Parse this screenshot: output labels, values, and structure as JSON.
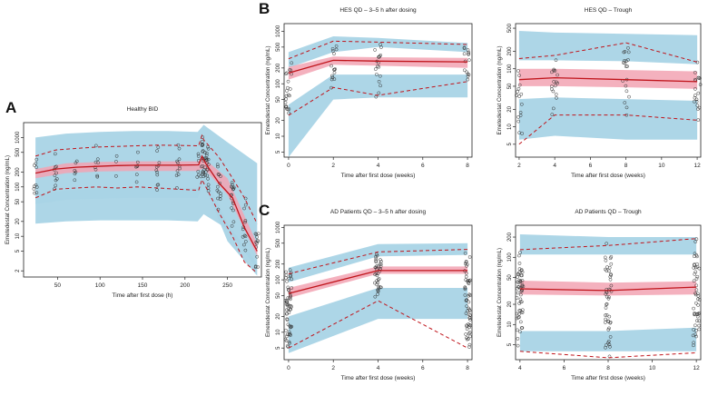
{
  "chart_data": [
    {
      "panel": "A",
      "type": "line",
      "title": "Healthy BID",
      "xlabel": "Time after first dose (h)",
      "ylabel": "Emetedestat Concentration (ng/mL)",
      "xlim": [
        10,
        290
      ],
      "ylim": [
        1.5,
        2000
      ],
      "yscale": "log",
      "xticks": [
        50,
        100,
        150,
        200,
        250
      ],
      "yticks": [
        2,
        5,
        10,
        20,
        50,
        100,
        200,
        500,
        1000
      ],
      "bands": [
        {
          "name": "p95 PI",
          "x": [
            24,
            60,
            100,
            140,
            180,
            215,
            222,
            250,
            285
          ],
          "lo": [
            18,
            20,
            21,
            21,
            21,
            20,
            28,
            14,
            2.2
          ],
          "hi": [
            1000,
            1200,
            1300,
            1350,
            1350,
            1300,
            1800,
            800,
            300
          ]
        },
        {
          "name": "median PI",
          "x": [
            24,
            60,
            100,
            140,
            180,
            215,
            222,
            250,
            285
          ],
          "lo": [
            150,
            190,
            205,
            210,
            210,
            210,
            240,
            70,
            4
          ],
          "hi": [
            230,
            300,
            320,
            330,
            330,
            330,
            380,
            150,
            7
          ]
        },
        {
          "name": "p5 PI",
          "x": [
            24,
            60,
            100,
            140,
            180,
            215,
            222,
            250,
            285
          ],
          "lo": [
            45,
            55,
            58,
            60,
            60,
            60,
            120,
            8,
            1.6
          ],
          "hi": [
            70,
            85,
            90,
            95,
            95,
            95,
            200,
            18,
            2.8
          ]
        }
      ],
      "series": [
        {
          "name": "observed median",
          "style": "solid",
          "x": [
            24,
            48,
            72,
            96,
            120,
            144,
            168,
            192,
            216,
            220,
            222,
            226,
            240,
            256,
            270,
            285
          ],
          "y": [
            190,
            230,
            250,
            260,
            270,
            275,
            275,
            275,
            280,
            420,
            350,
            270,
            120,
            60,
            15,
            5
          ]
        },
        {
          "name": "observed p95",
          "style": "dashed",
          "x": [
            24,
            48,
            72,
            96,
            120,
            144,
            168,
            192,
            216,
            220,
            222,
            226,
            240,
            256,
            270,
            285
          ],
          "y": [
            420,
            560,
            600,
            640,
            660,
            680,
            700,
            690,
            680,
            1100,
            900,
            750,
            400,
            150,
            60,
            18
          ]
        },
        {
          "name": "observed p5",
          "style": "dashed",
          "x": [
            24,
            48,
            72,
            96,
            120,
            144,
            168,
            192,
            216,
            220,
            222,
            226,
            240,
            256,
            270,
            285
          ],
          "y": [
            60,
            90,
            95,
            100,
            95,
            100,
            95,
            90,
            85,
            140,
            120,
            90,
            30,
            10,
            3,
            1.8
          ]
        }
      ]
    },
    {
      "panel": "B",
      "type": "line",
      "title": "HES QD – 3–5 h after dosing",
      "xlabel": "Time after first dose (weeks)",
      "ylabel": "Emetedestat Concentration (ng/mL)",
      "xlim": [
        -0.2,
        8.2
      ],
      "ylim": [
        4,
        1400
      ],
      "yscale": "log",
      "xticks": [
        0,
        2,
        4,
        6,
        8
      ],
      "yticks": [
        5,
        10,
        20,
        50,
        100,
        200,
        500,
        1000
      ],
      "bands": [
        {
          "name": "p95 PI",
          "x": [
            0,
            2,
            4,
            8
          ],
          "lo": [
            200,
            400,
            500,
            400
          ],
          "hi": [
            400,
            800,
            750,
            600
          ]
        },
        {
          "name": "median PI",
          "x": [
            0,
            2,
            4,
            8
          ],
          "lo": [
            120,
            230,
            220,
            200
          ],
          "hi": [
            210,
            330,
            320,
            310
          ]
        },
        {
          "name": "p5 PI",
          "x": [
            0,
            2,
            4,
            8
          ],
          "lo": [
            4,
            50,
            55,
            55
          ],
          "hi": [
            40,
            150,
            150,
            150
          ]
        }
      ],
      "series": [
        {
          "name": "observed median",
          "style": "solid",
          "x": [
            0,
            2,
            4,
            8
          ],
          "y": [
            160,
            280,
            270,
            260
          ]
        },
        {
          "name": "observed p95",
          "style": "dashed",
          "x": [
            0,
            2,
            4,
            8
          ],
          "y": [
            300,
            650,
            620,
            560
          ]
        },
        {
          "name": "observed p5",
          "style": "dashed",
          "x": [
            0,
            2,
            4,
            8
          ],
          "y": [
            25,
            85,
            60,
            110
          ]
        }
      ]
    },
    {
      "panel": "B",
      "type": "line",
      "title": "HES QD – Trough",
      "xlabel": "Time after first dose (weeks)",
      "ylabel": "Emetedestat Concentration (ng/mL)",
      "xlim": [
        1.8,
        12.2
      ],
      "ylim": [
        3,
        600
      ],
      "yscale": "log",
      "xticks": [
        2,
        4,
        6,
        8,
        10,
        12
      ],
      "yticks": [
        5,
        10,
        20,
        50,
        100,
        200,
        500
      ],
      "bands": [
        {
          "name": "p95 PI",
          "x": [
            2,
            4,
            8,
            12
          ],
          "lo": [
            140,
            140,
            135,
            120
          ],
          "hi": [
            450,
            420,
            400,
            380
          ]
        },
        {
          "name": "median PI",
          "x": [
            2,
            4,
            8,
            12
          ],
          "lo": [
            50,
            50,
            48,
            45
          ],
          "hi": [
            100,
            100,
            95,
            90
          ]
        },
        {
          "name": "p5 PI",
          "x": [
            2,
            4,
            8,
            12
          ],
          "lo": [
            6,
            7,
            6,
            6
          ],
          "hi": [
            30,
            32,
            30,
            28
          ]
        }
      ],
      "series": [
        {
          "name": "observed median",
          "style": "solid",
          "x": [
            2,
            4,
            8,
            12
          ],
          "y": [
            65,
            70,
            65,
            60
          ]
        },
        {
          "name": "observed p95",
          "style": "dashed",
          "x": [
            2,
            4,
            8,
            12
          ],
          "y": [
            150,
            170,
            280,
            130
          ]
        },
        {
          "name": "observed p5",
          "style": "dashed",
          "x": [
            2,
            4,
            8,
            12
          ],
          "y": [
            5,
            16,
            16,
            13
          ]
        }
      ]
    },
    {
      "panel": "C",
      "type": "line",
      "title": "AD Patients QD – 3–5 h after dosing",
      "xlabel": "Time after first dose (weeks)",
      "ylabel": "Emetedestat Concentration (ng/mL)",
      "xlim": [
        -0.2,
        8.2
      ],
      "ylim": [
        3,
        1100
      ],
      "yscale": "log",
      "xticks": [
        0,
        2,
        4,
        6,
        8
      ],
      "yticks": [
        5,
        10,
        20,
        50,
        100,
        200,
        500,
        1000
      ],
      "bands": [
        {
          "name": "p95 PI",
          "x": [
            0,
            4,
            8
          ],
          "lo": [
            90,
            280,
            300
          ],
          "hi": [
            170,
            480,
            500
          ]
        },
        {
          "name": "median PI",
          "x": [
            0,
            4,
            8
          ],
          "lo": [
            45,
            130,
            130
          ],
          "hi": [
            70,
            180,
            180
          ]
        },
        {
          "name": "p5 PI",
          "x": [
            0,
            4,
            8
          ],
          "lo": [
            4,
            18,
            18
          ],
          "hi": [
            20,
            70,
            70
          ]
        }
      ],
      "series": [
        {
          "name": "observed median",
          "style": "solid",
          "x": [
            0,
            4,
            8
          ],
          "y": [
            55,
            150,
            150
          ]
        },
        {
          "name": "observed p95",
          "style": "dashed",
          "x": [
            0,
            4,
            8
          ],
          "y": [
            130,
            340,
            380
          ]
        },
        {
          "name": "observed p5",
          "style": "dashed",
          "x": [
            0,
            4,
            8
          ],
          "y": [
            5,
            40,
            5
          ]
        }
      ]
    },
    {
      "panel": "C",
      "type": "line",
      "title": "AD Patients QD – Trough",
      "xlabel": "Time after first dose (weeks)",
      "ylabel": "Emetedestat Concentration (ng/mL)",
      "xlim": [
        3.8,
        12.2
      ],
      "ylim": [
        3,
        300
      ],
      "yscale": "log",
      "xticks": [
        4,
        6,
        8,
        10,
        12
      ],
      "yticks": [
        5,
        10,
        20,
        50,
        100,
        200
      ],
      "bands": [
        {
          "name": "p95 PI",
          "x": [
            4,
            8,
            12
          ],
          "lo": [
            110,
            110,
            110
          ],
          "hi": [
            220,
            200,
            200
          ]
        },
        {
          "name": "median PI",
          "x": [
            4,
            8,
            12
          ],
          "lo": [
            28,
            27,
            28
          ],
          "hi": [
            45,
            42,
            44
          ]
        },
        {
          "name": "p5 PI",
          "x": [
            4,
            8,
            12
          ],
          "lo": [
            4,
            4,
            4
          ],
          "hi": [
            8,
            8,
            9
          ]
        }
      ],
      "series": [
        {
          "name": "observed median",
          "style": "solid",
          "x": [
            4,
            8,
            12
          ],
          "y": [
            34,
            32,
            36
          ]
        },
        {
          "name": "observed p95",
          "style": "dashed",
          "x": [
            4,
            8,
            12
          ],
          "y": [
            130,
            150,
            190
          ]
        },
        {
          "name": "observed p5",
          "style": "dashed",
          "x": [
            4,
            8,
            12
          ],
          "y": [
            4,
            3.2,
            3.8
          ]
        }
      ]
    }
  ],
  "panel_labels": [
    "A",
    "B",
    "C"
  ],
  "colors": {
    "pi_outer": "#a9d4e6",
    "pi_median": "#f2a3b3",
    "obs_line": "#c0141b",
    "points": "#333333",
    "axis": "#222222"
  }
}
